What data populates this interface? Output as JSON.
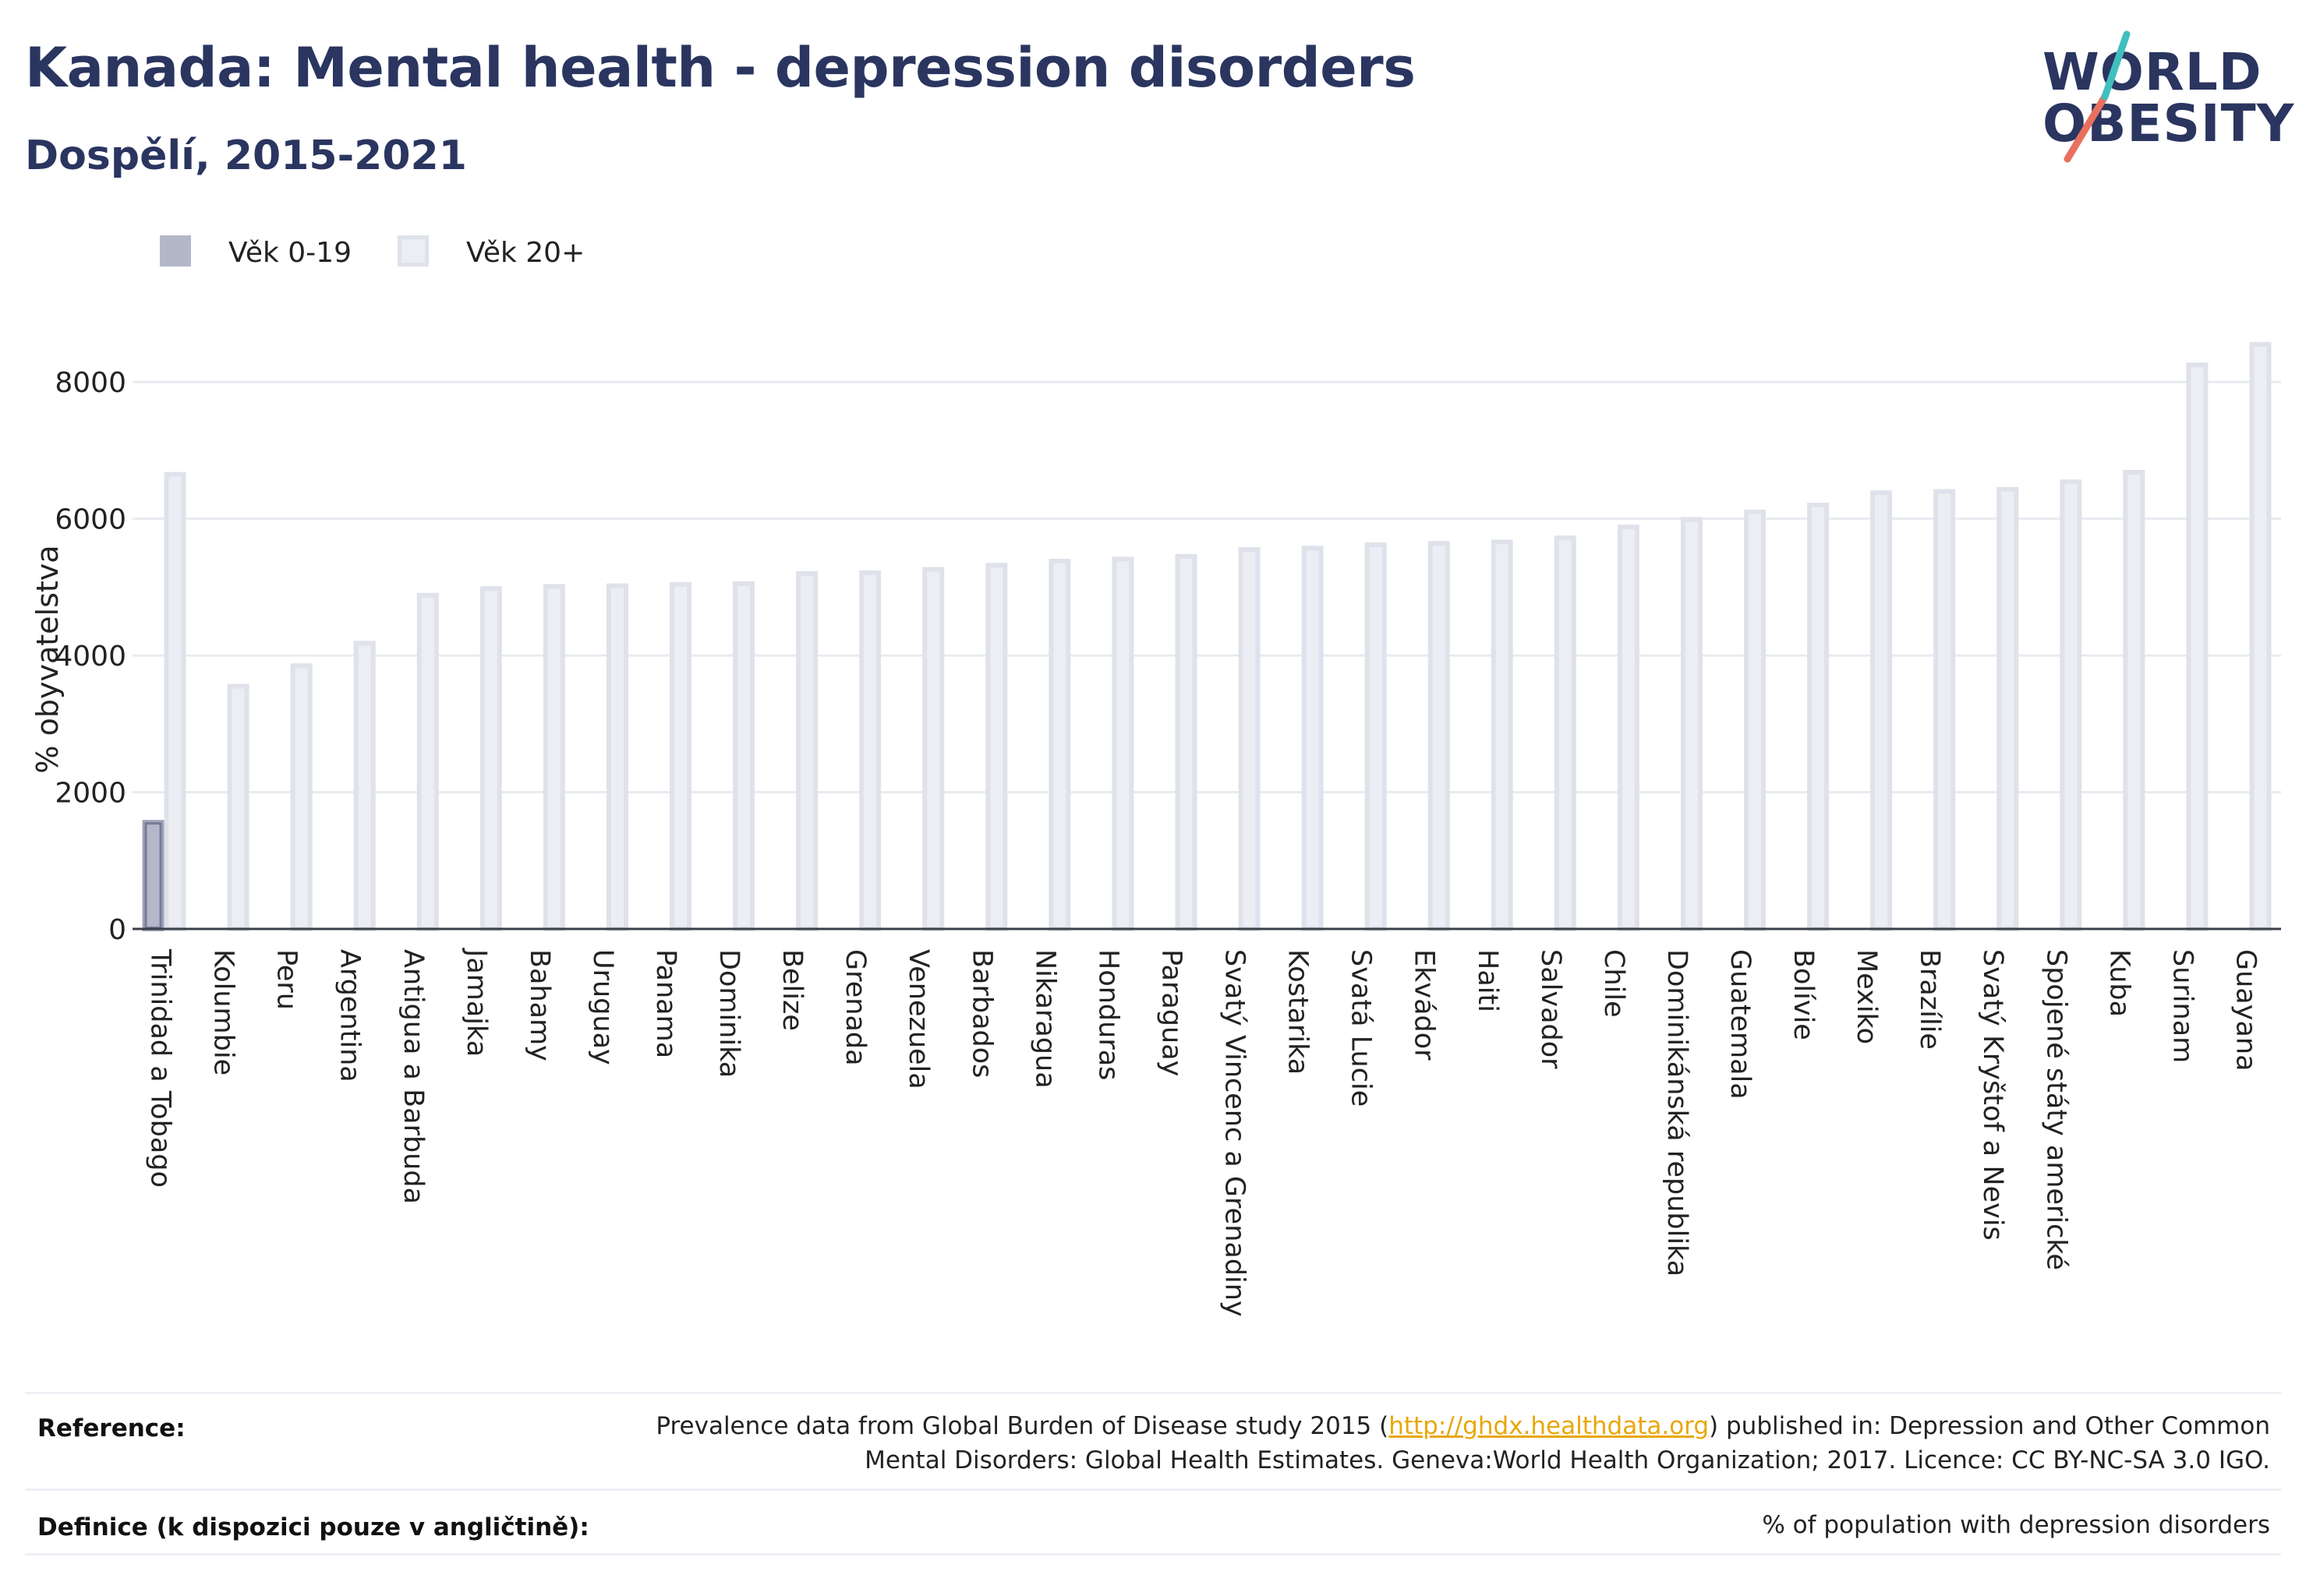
{
  "header": {
    "title": "Kanada: Mental health - depression disorders",
    "subtitle": "Dospělí, 2015-2021"
  },
  "logo": {
    "line1": "WORLD",
    "line2": "OBESITY"
  },
  "legend": [
    {
      "label": "Věk 0-19",
      "color": "#2a3560"
    },
    {
      "label": "Věk 20+",
      "color": "#d9dce8"
    }
  ],
  "chart_data": {
    "type": "bar",
    "ylabel": "% obyvatelstva",
    "ylim": [
      0,
      8800
    ],
    "yticks": [
      0,
      2000,
      4000,
      6000,
      8000
    ],
    "grid": true,
    "legend_position": "top-left",
    "categories": [
      "Trinidad a Tobago",
      "Kolumbie",
      "Peru",
      "Argentina",
      "Antigua a Barbuda",
      "Jamajka",
      "Bahamy",
      "Uruguay",
      "Panama",
      "Dominika",
      "Belize",
      "Grenada",
      "Venezuela",
      "Barbados",
      "Nikaragua",
      "Honduras",
      "Paraguay",
      "Svatý Vincenc a Grenadiny",
      "Kostarika",
      "Svatá Lucie",
      "Ekvádor",
      "Haiti",
      "Salvador",
      "Chile",
      "Dominikánská republika",
      "Guatemala",
      "Bolívie",
      "Mexiko",
      "Brazílie",
      "Svatý Kryštof a Nevis",
      "Spojené státy americké",
      "Kuba",
      "Surinam",
      "Guayana"
    ],
    "series": [
      {
        "name": "Věk 0-19",
        "values": [
          1560,
          null,
          null,
          null,
          null,
          null,
          null,
          null,
          null,
          null,
          null,
          null,
          null,
          null,
          null,
          null,
          null,
          null,
          null,
          null,
          null,
          null,
          null,
          null,
          null,
          null,
          null,
          null,
          null,
          null,
          null,
          null,
          null,
          null
        ]
      },
      {
        "name": "Věk 20+",
        "values": [
          6650,
          3550,
          3850,
          4180,
          4880,
          4980,
          5010,
          5020,
          5040,
          5050,
          5200,
          5210,
          5260,
          5320,
          5380,
          5410,
          5450,
          5550,
          5570,
          5620,
          5640,
          5660,
          5720,
          5880,
          5990,
          6100,
          6200,
          6380,
          6400,
          6430,
          6540,
          6680,
          8250,
          8550
        ]
      }
    ]
  },
  "reference": {
    "label": "Reference:",
    "text_before": "Prevalence data from Global Burden of Disease study 2015 (",
    "link": "http://ghdx.healthdata.org",
    "text_after": ") published in: Depression and Other Common",
    "line2": "Mental Disorders: Global Health Estimates. Geneva:World Health Organization; 2017. Licence: CC BY-NC-SA 3.0 IGO."
  },
  "definition": {
    "label": "Definice (k dispozici pouze v angličtině):",
    "text": "% of population with depression disorders"
  }
}
